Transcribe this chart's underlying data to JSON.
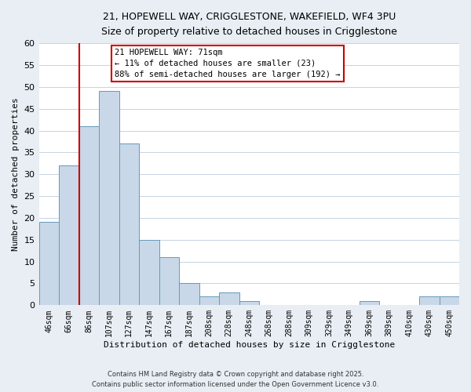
{
  "title_line1": "21, HOPEWELL WAY, CRIGGLESTONE, WAKEFIELD, WF4 3PU",
  "title_line2": "Size of property relative to detached houses in Crigglestone",
  "xlabel": "Distribution of detached houses by size in Crigglestone",
  "ylabel": "Number of detached properties",
  "bar_labels": [
    "46sqm",
    "66sqm",
    "86sqm",
    "107sqm",
    "127sqm",
    "147sqm",
    "167sqm",
    "187sqm",
    "208sqm",
    "228sqm",
    "248sqm",
    "268sqm",
    "288sqm",
    "309sqm",
    "329sqm",
    "349sqm",
    "369sqm",
    "389sqm",
    "410sqm",
    "430sqm",
    "450sqm"
  ],
  "bar_heights": [
    19,
    32,
    41,
    49,
    37,
    15,
    11,
    5,
    2,
    3,
    1,
    0,
    0,
    0,
    0,
    0,
    1,
    0,
    0,
    2,
    2
  ],
  "bar_color": "#c8d8e8",
  "bar_edgecolor": "#6699bb",
  "ylim": [
    0,
    60
  ],
  "yticks": [
    0,
    5,
    10,
    15,
    20,
    25,
    30,
    35,
    40,
    45,
    50,
    55,
    60
  ],
  "vline_x": 1.5,
  "vline_color": "#cc0000",
  "annotation_title": "21 HOPEWELL WAY: 71sqm",
  "annotation_line1": "← 11% of detached houses are smaller (23)",
  "annotation_line2": "88% of semi-detached houses are larger (192) →",
  "annotation_box_edgecolor": "#cc0000",
  "footer_line1": "Contains HM Land Registry data © Crown copyright and database right 2025.",
  "footer_line2": "Contains public sector information licensed under the Open Government Licence v3.0.",
  "background_color": "#e8eef4",
  "plot_background": "#ffffff"
}
